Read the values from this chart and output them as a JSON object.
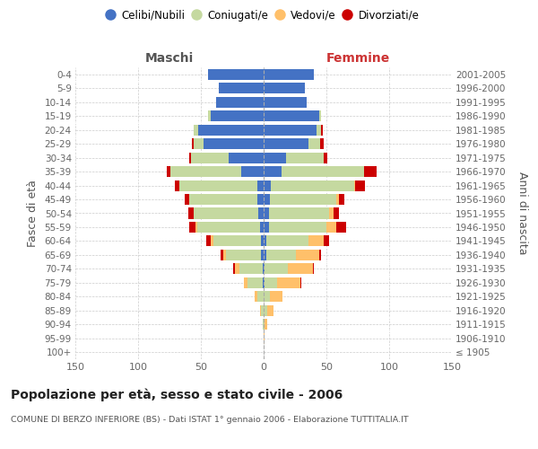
{
  "age_groups": [
    "100+",
    "95-99",
    "90-94",
    "85-89",
    "80-84",
    "75-79",
    "70-74",
    "65-69",
    "60-64",
    "55-59",
    "50-54",
    "45-49",
    "40-44",
    "35-39",
    "30-34",
    "25-29",
    "20-24",
    "15-19",
    "10-14",
    "5-9",
    "0-4"
  ],
  "birth_years": [
    "≤ 1905",
    "1906-1910",
    "1911-1915",
    "1916-1920",
    "1921-1925",
    "1926-1930",
    "1931-1935",
    "1936-1940",
    "1941-1945",
    "1946-1950",
    "1951-1955",
    "1956-1960",
    "1961-1965",
    "1966-1970",
    "1971-1975",
    "1976-1980",
    "1981-1985",
    "1986-1990",
    "1991-1995",
    "1996-2000",
    "2001-2005"
  ],
  "male_celibi": [
    0,
    0,
    0,
    0,
    0,
    1,
    1,
    2,
    2,
    3,
    4,
    5,
    5,
    18,
    28,
    48,
    52,
    42,
    38,
    36,
    44
  ],
  "male_coniugati": [
    0,
    0,
    1,
    2,
    5,
    12,
    18,
    28,
    38,
    50,
    52,
    54,
    62,
    56,
    30,
    8,
    4,
    2,
    0,
    0,
    0
  ],
  "male_vedovi": [
    0,
    0,
    0,
    1,
    2,
    3,
    4,
    2,
    2,
    1,
    0,
    0,
    0,
    0,
    0,
    0,
    0,
    0,
    0,
    0,
    0
  ],
  "male_divorziati": [
    0,
    0,
    0,
    0,
    0,
    0,
    1,
    2,
    4,
    5,
    4,
    4,
    4,
    3,
    1,
    1,
    0,
    0,
    0,
    0,
    0
  ],
  "female_nubili": [
    0,
    0,
    0,
    0,
    0,
    1,
    1,
    2,
    2,
    4,
    4,
    5,
    6,
    14,
    18,
    36,
    42,
    44,
    34,
    33,
    40
  ],
  "female_coniugate": [
    0,
    0,
    1,
    3,
    5,
    10,
    18,
    24,
    34,
    46,
    48,
    53,
    66,
    66,
    30,
    9,
    4,
    2,
    0,
    0,
    0
  ],
  "female_vedove": [
    0,
    1,
    2,
    5,
    10,
    18,
    20,
    18,
    12,
    8,
    4,
    2,
    1,
    0,
    0,
    0,
    0,
    0,
    0,
    0,
    0
  ],
  "female_divorziate": [
    0,
    0,
    0,
    0,
    0,
    1,
    1,
    2,
    4,
    8,
    4,
    4,
    8,
    10,
    3,
    3,
    1,
    0,
    0,
    0,
    0
  ],
  "color_celibi": "#4472c4",
  "color_coniugati": "#c5d9a0",
  "color_vedovi": "#ffc06a",
  "color_divorziati": "#cc0000",
  "title": "Popolazione per età, sesso e stato civile - 2006",
  "subtitle": "COMUNE DI BERZO INFERIORE (BS) - Dati ISTAT 1° gennaio 2006 - Elaborazione TUTTITALIA.IT",
  "legend_labels": [
    "Celibi/Nubili",
    "Coniugati/e",
    "Vedovi/e",
    "Divorziati/e"
  ],
  "xlabel_left": "Maschi",
  "xlabel_right": "Femmine",
  "ylabel_left": "Fasce di età",
  "ylabel_right": "Anni di nascita",
  "xlim": 150,
  "bg_color": "#ffffff",
  "grid_color": "#cccccc",
  "maschi_color": "#555555",
  "femmine_color": "#cc3333"
}
